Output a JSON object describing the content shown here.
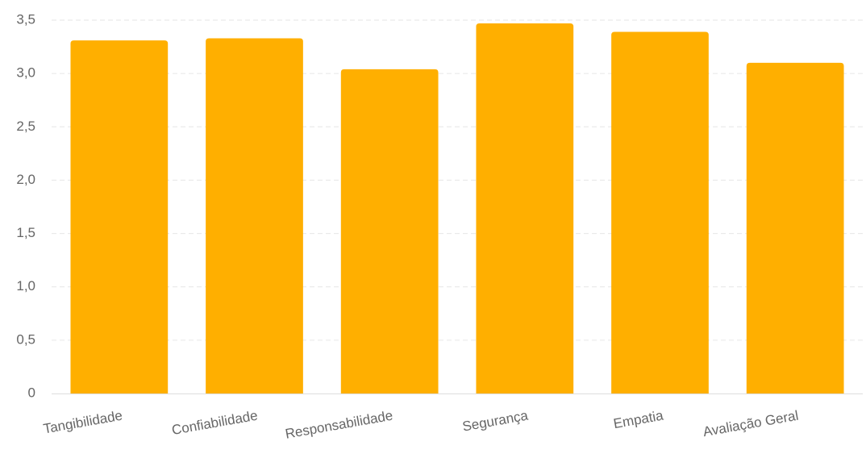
{
  "chart_data": {
    "type": "bar",
    "categories": [
      "Tangibilidade",
      "Confiabilidade",
      "Responsabilidade",
      "Segurança",
      "Empatia",
      "Avaliação Geral"
    ],
    "values": [
      3.31,
      3.33,
      3.04,
      3.47,
      3.39,
      3.1
    ],
    "color": "#ffaf00",
    "ylim": [
      0,
      3.5
    ],
    "yticks": [
      0,
      {
        "value": 0.5,
        "label": "0,5"
      },
      {
        "value": 1,
        "label": "1,0"
      },
      {
        "value": 1.5,
        "label": "1,5"
      },
      {
        "value": 2,
        "label": "2,0"
      },
      {
        "value": 2.5,
        "label": "2,5"
      },
      {
        "value": 3,
        "label": "3,0"
      },
      {
        "value": 3.5,
        "label": "3,5"
      }
    ],
    "grid": true
  }
}
